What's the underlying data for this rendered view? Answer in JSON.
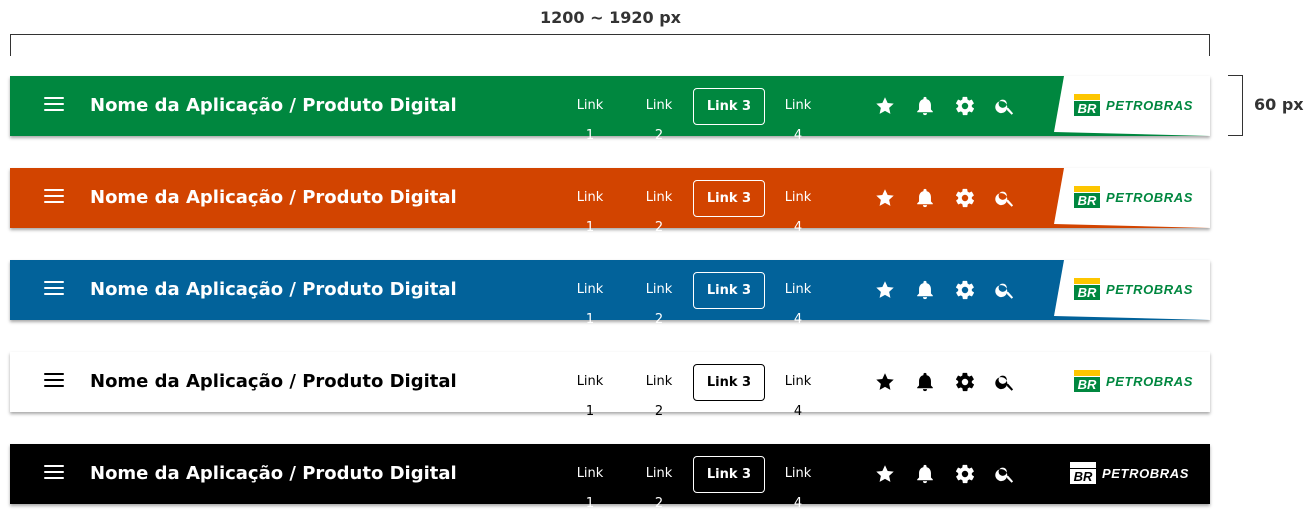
{
  "annotations": {
    "width_label": "1200 ~ 1920 px",
    "height_label": "60 px"
  },
  "header": {
    "title": "Nome da Aplicação / Produto Digital",
    "links": [
      "Link 1",
      "Link 2",
      "Link 3",
      "Link 4"
    ],
    "active_link": "Link 3",
    "icons": [
      "star-icon",
      "bell-icon",
      "gear-icon",
      "search-icon",
      "menu-icon"
    ],
    "logo_text": "PETROBRAS",
    "logo_mark_text": "BR"
  },
  "variants": [
    {
      "name": "green",
      "background": "#00873f",
      "foreground": "#ffffff"
    },
    {
      "name": "orange",
      "background": "#d24400",
      "foreground": "#ffffff"
    },
    {
      "name": "blue",
      "background": "#02629a",
      "foreground": "#ffffff"
    },
    {
      "name": "white",
      "background": "#ffffff",
      "foreground": "#000000"
    },
    {
      "name": "black",
      "background": "#000000",
      "foreground": "#ffffff"
    }
  ],
  "brand_colors": {
    "green": "#00873f",
    "yellow": "#fdc600"
  }
}
